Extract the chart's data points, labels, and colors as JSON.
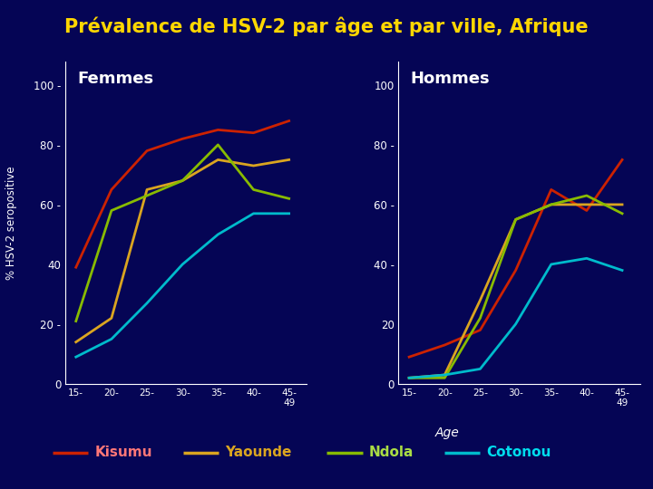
{
  "title": "Prévalence de HSV-2 par âge et par ville, Afrique",
  "title_color": "#FFD700",
  "background_color": "#050555",
  "plot_bg_color": "#050555",
  "ylabel": "% HSV-2 seropositive",
  "xlabel_right": "Age",
  "age_labels": [
    "15-",
    "20-",
    "25-",
    "30-",
    "35-",
    "40-",
    "45-\n49"
  ],
  "femmes_label": "Femmes",
  "hommes_label": "Hommes",
  "cities": [
    "Kisumu",
    "Yaounde",
    "Ndola",
    "Cotonou"
  ],
  "line_colors": [
    "#CC2200",
    "#DAA520",
    "#88BB00",
    "#00BBCC"
  ],
  "legend_text_colors": [
    "#FF7777",
    "#DAA520",
    "#AADD44",
    "#00DDEE"
  ],
  "femmes": {
    "Kisumu": [
      39,
      65,
      78,
      82,
      85,
      84,
      88
    ],
    "Yaounde": [
      14,
      22,
      65,
      68,
      75,
      73,
      75
    ],
    "Ndola": [
      21,
      58,
      63,
      68,
      80,
      65,
      62
    ],
    "Cotonou": [
      9,
      15,
      27,
      40,
      50,
      57,
      57
    ]
  },
  "hommes": {
    "Kisumu": [
      9,
      13,
      18,
      38,
      65,
      58,
      75
    ],
    "Yaounde": [
      2,
      3,
      28,
      55,
      60,
      60,
      60
    ],
    "Ndola": [
      2,
      2,
      22,
      55,
      60,
      63,
      57
    ],
    "Cotonou": [
      2,
      3,
      5,
      20,
      40,
      42,
      38
    ]
  },
  "ylim": [
    0,
    108
  ],
  "yticks": [
    0,
    20,
    40,
    60,
    80,
    100
  ],
  "ytick_labels": [
    "0",
    "20 -",
    "40",
    "60 -",
    "80 -",
    "100 -"
  ],
  "ytick_labels_right": [
    "0",
    "20",
    "40 -",
    "60 -",
    "80 -",
    "100"
  ],
  "linewidth": 2.0,
  "gold_line_color": "#B8860B",
  "separator_color": "#DAA520"
}
